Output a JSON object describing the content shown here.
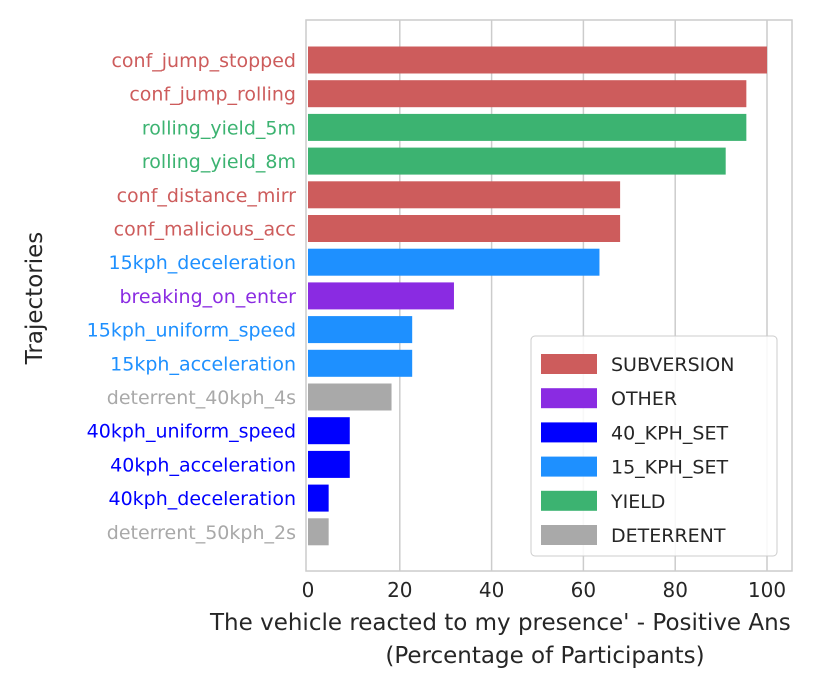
{
  "chart_data": {
    "type": "bar",
    "orientation": "horizontal",
    "title": "",
    "xlabel": "The vehicle reacted to my presence' - Positive Ans",
    "xlabel_line2": "(Percentage of Participants)",
    "ylabel": "Trajectories",
    "xlim": [
      0,
      105
    ],
    "xticks": [
      0,
      20,
      40,
      60,
      80,
      100
    ],
    "grid": "vertical",
    "legend_position": "lower-right",
    "categories": [
      "conf_jump_stopped",
      "conf_jump_rolling",
      "rolling_yield_5m",
      "rolling_yield_8m",
      "conf_distance_mirr",
      "conf_malicious_acc",
      "15kph_deceleration",
      "breaking_on_enter",
      "15kph_uniform_speed",
      "15kph_acceleration",
      "deterrent_40kph_4s",
      "40kph_uniform_speed",
      "40kph_acceleration",
      "40kph_deceleration",
      "deterrent_50kph_2s"
    ],
    "values": [
      100,
      95.5,
      95.5,
      91,
      68,
      68,
      63.5,
      31.8,
      22.7,
      22.7,
      18.2,
      9.1,
      9.1,
      4.5,
      4.5
    ],
    "groups": [
      "SUBVERSION",
      "SUBVERSION",
      "YIELD",
      "YIELD",
      "SUBVERSION",
      "SUBVERSION",
      "15_KPH_SET",
      "OTHER",
      "15_KPH_SET",
      "15_KPH_SET",
      "DETERRENT",
      "40_KPH_SET",
      "40_KPH_SET",
      "40_KPH_SET",
      "DETERRENT"
    ],
    "legend": [
      {
        "name": "SUBVERSION",
        "color": "#cd5c5c"
      },
      {
        "name": "OTHER",
        "color": "#8a2be2"
      },
      {
        "name": "40_KPH_SET",
        "color": "#0000ff"
      },
      {
        "name": "15_KPH_SET",
        "color": "#1e90ff"
      },
      {
        "name": "YIELD",
        "color": "#3cb371"
      },
      {
        "name": "DETERRENT",
        "color": "#a9a9a9"
      }
    ]
  }
}
